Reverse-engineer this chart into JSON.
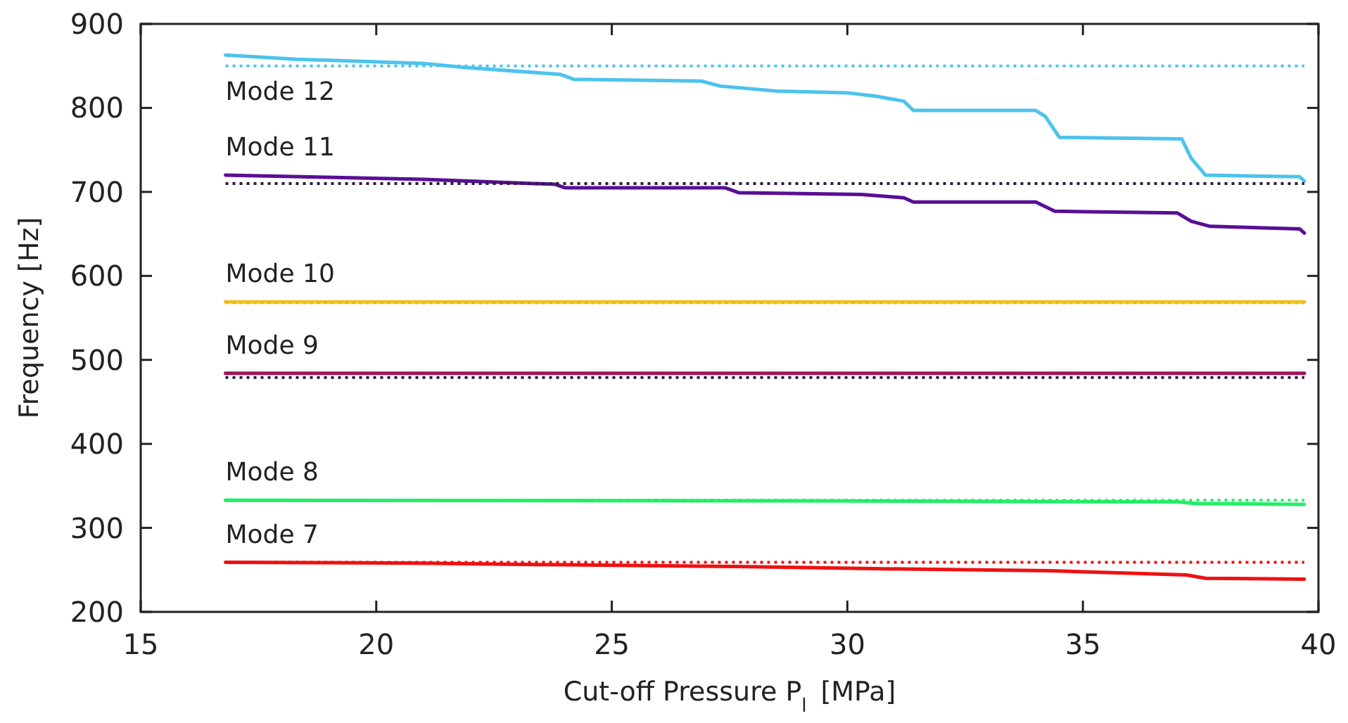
{
  "chart_data": {
    "type": "line",
    "xlabel": "Cut-off Pressure P$_{l}$ [MPa]",
    "ylabel": "Frequency [Hz]",
    "xlim": [
      15,
      40
    ],
    "ylim": [
      200,
      900
    ],
    "xticks": [
      15,
      20,
      25,
      30,
      35,
      40
    ],
    "yticks": [
      200,
      300,
      400,
      500,
      600,
      700,
      800,
      900
    ],
    "grid": false,
    "line_style": "solid",
    "series": [
      {
        "name": "Mode 12",
        "color": "#4cc3ec",
        "x": [
          16.8,
          18.3,
          21,
          21.9,
          23.9,
          24.2,
          26.9,
          27.3,
          28.5,
          30,
          30.6,
          31.2,
          31.4,
          34,
          34.2,
          34.5,
          37.1,
          37.3,
          37.6,
          39.6,
          39.7
        ],
        "values": [
          863,
          858,
          853,
          848,
          840,
          834,
          832,
          826,
          820,
          818,
          814,
          808,
          797,
          797,
          790,
          765,
          763,
          740,
          720,
          718,
          713
        ]
      },
      {
        "color": "#4cc3ec",
        "line_style": "dotted",
        "x": [
          16.8,
          39.7
        ],
        "values": [
          850,
          850
        ]
      },
      {
        "name": "Mode 11",
        "color": "#5a0e96",
        "x": [
          16.8,
          21,
          23.8,
          24,
          27.4,
          27.7,
          30.3,
          31.2,
          31.4,
          34,
          34.4,
          37,
          37.3,
          37.7,
          39.6,
          39.7
        ],
        "values": [
          720,
          715,
          709,
          705,
          705,
          699,
          697,
          693,
          688,
          688,
          677,
          675,
          665,
          659,
          656,
          651
        ]
      },
      {
        "color": "#2c1a3a",
        "line_style": "dotted",
        "x": [
          16.8,
          39.7
        ],
        "values": [
          710,
          710
        ]
      },
      {
        "name": "Mode 10",
        "color": "#f0c020",
        "x": [
          16.8,
          39.7
        ],
        "values": [
          569,
          569
        ]
      },
      {
        "color": "#e8b81a",
        "line_style": "dotted",
        "x": [
          16.8,
          39.7
        ],
        "values": [
          568,
          568
        ]
      },
      {
        "name": "Mode 9",
        "color": "#9e1458",
        "x": [
          16.8,
          39.7
        ],
        "values": [
          484,
          484
        ]
      },
      {
        "color": "#2c1a3a",
        "line_style": "dotted",
        "x": [
          16.8,
          39.7
        ],
        "values": [
          479,
          479
        ]
      },
      {
        "name": "Mode 8",
        "color": "#22ee66",
        "x": [
          16.8,
          30,
          37,
          37.4,
          39.7
        ],
        "values": [
          333,
          332,
          331,
          329,
          328
        ]
      },
      {
        "color": "#22ee66",
        "line_style": "dotted",
        "x": [
          16.8,
          39.7
        ],
        "values": [
          333,
          333
        ]
      },
      {
        "name": "Mode 7",
        "color": "#ee1111",
        "x": [
          16.8,
          21,
          24,
          27.7,
          31.2,
          34.3,
          37.2,
          37.6,
          39.7
        ],
        "values": [
          259,
          258,
          256,
          254,
          251,
          249,
          244,
          240,
          239
        ]
      },
      {
        "color": "#ee1111",
        "line_style": "dotted",
        "x": [
          16.8,
          39.7
        ],
        "values": [
          259,
          259
        ]
      }
    ]
  }
}
